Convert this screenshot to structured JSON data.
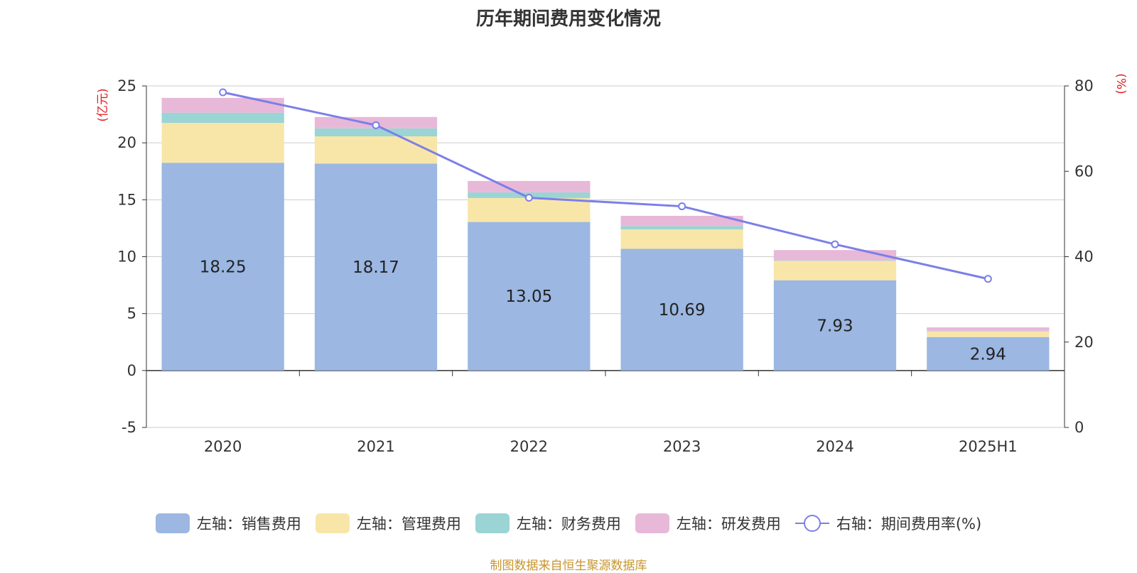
{
  "title": "历年期间费用变化情况",
  "source": "制图数据来自恒生聚源数据库",
  "chart_data": {
    "type": "bar",
    "stacked": true,
    "categories": [
      "2020",
      "2021",
      "2022",
      "2023",
      "2024",
      "2025H1"
    ],
    "left_axis": {
      "unit": "(亿元)",
      "range": [
        -5,
        25
      ],
      "ticks": [
        "-5",
        "0",
        "5",
        "10",
        "15",
        "20",
        "25"
      ]
    },
    "right_axis": {
      "unit": "(%)",
      "range": [
        0,
        80
      ],
      "ticks": [
        "0",
        "20",
        "40",
        "60",
        "80"
      ]
    },
    "series": [
      {
        "name": "左轴：销售费用",
        "color": "#9bb7e2",
        "values": [
          18.25,
          18.17,
          13.05,
          10.69,
          7.93,
          2.94
        ],
        "show_labels": true
      },
      {
        "name": "左轴：管理费用",
        "color": "#f8e6a8",
        "values": [
          3.5,
          2.4,
          2.1,
          1.7,
          1.7,
          0.5
        ]
      },
      {
        "name": "左轴：财务费用",
        "color": "#9ad4d4",
        "values": [
          0.9,
          0.7,
          0.5,
          0.3,
          0.05,
          0.05
        ]
      },
      {
        "name": "左轴：研发费用",
        "color": "#e8b8d8",
        "values": [
          1.3,
          1.0,
          1.0,
          0.9,
          0.9,
          0.3
        ]
      }
    ],
    "line_series": {
      "name": "右轴：期间费用率(%)",
      "color": "#7b7fe8",
      "axis": "right",
      "values": [
        78.5,
        70.8,
        53.8,
        51.8,
        42.9,
        34.8
      ]
    },
    "grid": true,
    "legend_position": "bottom"
  }
}
